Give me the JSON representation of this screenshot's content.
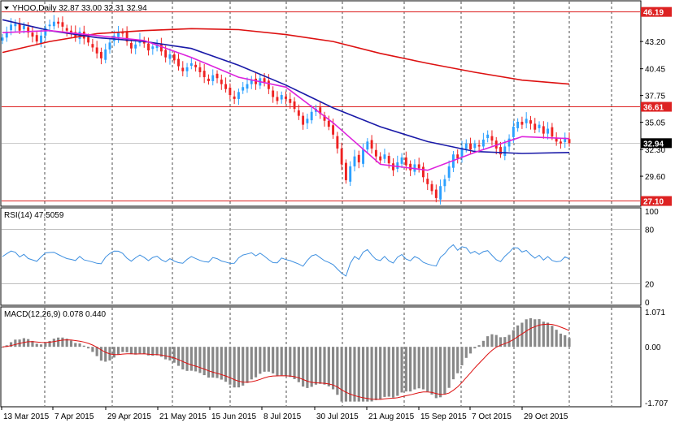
{
  "header": {
    "symbol_line": "YHOO,Daily  32.87 33.00 32.31 32.94"
  },
  "rsi": {
    "title": "RSI(14) 47.5059",
    "axis_labels": [
      "100",
      "80",
      "20",
      "0"
    ]
  },
  "macd": {
    "title": "MACD(12,26,9) 0.078 0.440",
    "axis_labels": [
      "1.071",
      "0.00",
      "-1.707"
    ]
  },
  "price_axis": {
    "labels": [
      "43.20",
      "40.45",
      "37.75",
      "35.05",
      "32.30",
      "29.60"
    ],
    "level_tags": [
      "46.19",
      "36.61",
      "27.10"
    ],
    "current_tag": "32.94"
  },
  "dates": [
    "13 Mar 2015",
    "7 Apr 2015",
    "29 Apr 2015",
    "21 May 2015",
    "15 Jun 2015",
    "8 Jul 2015",
    "30 Jul 2015",
    "21 Aug 2015",
    "15 Sep 2015",
    "7 Oct 2015",
    "29 Oct 2015"
  ],
  "colors": {
    "bull": "#2ca0ff",
    "bear": "#ee2222",
    "ma_red": "#dd1111",
    "ma_blue": "#1a1aa8",
    "ma_magenta": "#dd22dd",
    "rsi_line": "#3d8fe0",
    "macd_hist": "#888888",
    "macd_signal": "#dd1111",
    "level_line": "#dd2222",
    "tag_bg": "#dd2222",
    "current_tag_bg": "#000000"
  },
  "chart_data": {
    "type": "candlestick",
    "symbol": "YHOO",
    "timeframe": "Daily",
    "ohlc_last": {
      "open": 32.87,
      "high": 33.0,
      "low": 32.31,
      "close": 32.94
    },
    "horizontal_levels": [
      46.19,
      36.61,
      27.1
    ],
    "price_range": [
      26.9,
      46.9
    ],
    "x_tick_labels": [
      "13 Mar 2015",
      "7 Apr 2015",
      "29 Apr 2015",
      "21 May 2015",
      "15 Jun 2015",
      "8 Jul 2015",
      "30 Jul 2015",
      "21 Aug 2015",
      "15 Sep 2015",
      "7 Oct 2015",
      "29 Oct 2015"
    ],
    "close_series": [
      43.6,
      44.2,
      44.9,
      45.0,
      44.3,
      44.8,
      44.1,
      43.7,
      43.2,
      43.8,
      44.6,
      44.9,
      45.2,
      45.0,
      44.7,
      44.3,
      44.0,
      43.6,
      44.2,
      43.5,
      43.1,
      42.6,
      42.0,
      41.5,
      42.4,
      43.1,
      43.8,
      44.1,
      44.0,
      43.2,
      42.5,
      42.9,
      43.4,
      43.0,
      42.3,
      42.7,
      42.9,
      42.2,
      41.6,
      41.9,
      41.3,
      40.7,
      40.2,
      40.6,
      41.0,
      40.6,
      40.1,
      39.6,
      39.2,
      39.8,
      39.5,
      38.9,
      38.4,
      37.8,
      37.4,
      38.1,
      38.6,
      38.9,
      39.3,
      38.9,
      39.5,
      39.1,
      38.4,
      37.6,
      37.2,
      37.8,
      37.4,
      37.0,
      36.4,
      35.7,
      34.8,
      35.4,
      36.1,
      36.4,
      35.9,
      35.2,
      34.6,
      33.8,
      32.4,
      30.8,
      29.2,
      30.6,
      31.6,
      31.0,
      32.3,
      33.1,
      32.4,
      31.6,
      31.2,
      31.8,
      30.9,
      30.2,
      31.0,
      31.5,
      30.7,
      30.2,
      30.8,
      30.4,
      29.5,
      28.8,
      28.1,
      27.4,
      28.6,
      29.3,
      30.6,
      31.8,
      31.4,
      32.5,
      32.9,
      32.3,
      32.9,
      32.6,
      33.3,
      33.8,
      33.2,
      32.4,
      31.8,
      32.6,
      33.4,
      34.6,
      35.1,
      34.8,
      35.4,
      34.9,
      34.3,
      34.8,
      33.9,
      34.4,
      33.6,
      33.1,
      32.9,
      33.5,
      32.94
    ],
    "moving_averages": [
      {
        "color": "red",
        "values_sampled": [
          42.1,
          43.2,
          44.0,
          44.3,
          44.5,
          44.4,
          43.9,
          43.2,
          42.0,
          41.0,
          40.1,
          39.3,
          38.9
        ]
      },
      {
        "color": "blue",
        "values_sampled": [
          45.4,
          44.3,
          43.6,
          43.2,
          42.5,
          40.8,
          38.8,
          36.5,
          34.6,
          33.1,
          32.1,
          31.9,
          32.0
        ]
      },
      {
        "color": "magenta",
        "values_sampled": [
          44.1,
          44.3,
          43.8,
          43.3,
          41.6,
          39.6,
          38.6,
          35.0,
          30.8,
          30.2,
          32.0,
          33.6,
          33.4
        ]
      }
    ],
    "rsi": {
      "period": 14,
      "last": 47.5059,
      "range": [
        0,
        100
      ],
      "levels": [
        80,
        20
      ]
    },
    "macd": {
      "params": [
        12,
        26,
        9
      ],
      "macd_last": 0.078,
      "signal_last": 0.44,
      "range": [
        -1.707,
        1.071
      ]
    }
  }
}
